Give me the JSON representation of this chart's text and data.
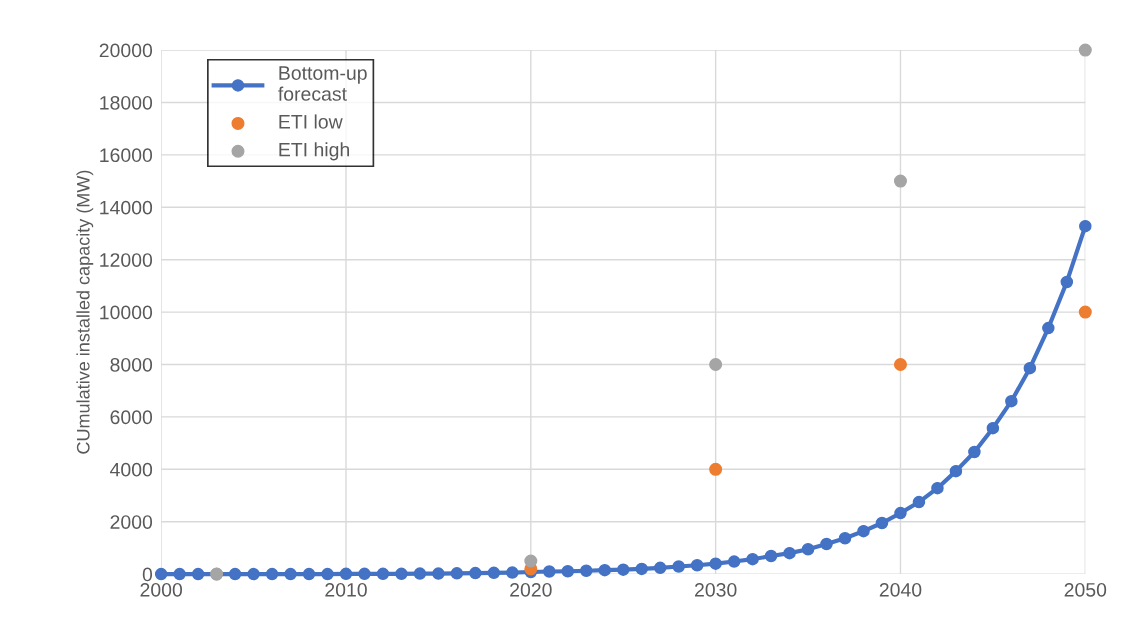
{
  "chart_data": {
    "type": "line",
    "ylabel": "CUmulative installed capacity (MW)",
    "xlim": [
      2000,
      2050
    ],
    "xticks": [
      2000,
      2010,
      2020,
      2030,
      2040,
      2050
    ],
    "ylim": [
      0,
      20000
    ],
    "yticks": [
      0,
      2000,
      4000,
      6000,
      8000,
      10000,
      12000,
      14000,
      16000,
      18000,
      20000
    ],
    "grid": true,
    "legend": "top left",
    "series": [
      {
        "name": "Bottom-up\nforecast",
        "color": "#4472c4",
        "marker": "circle",
        "x": [
          2000,
          2001,
          2002,
          2003,
          2004,
          2005,
          2006,
          2007,
          2008,
          2009,
          2010,
          2011,
          2012,
          2013,
          2014,
          2015,
          2016,
          2017,
          2018,
          2019,
          2020,
          2021,
          2022,
          2023,
          2024,
          2025,
          2026,
          2027,
          2028,
          2029,
          2030,
          2031,
          2032,
          2033,
          2034,
          2035,
          2036,
          2037,
          2038,
          2039,
          2040,
          2041,
          2042,
          2043,
          2044,
          2045,
          2046,
          2047,
          2048,
          2049,
          2050
        ],
        "values": [
          0,
          0,
          0,
          0,
          0,
          0,
          0,
          0,
          0,
          0,
          10,
          10,
          10,
          10,
          20,
          20,
          30,
          40,
          50,
          60,
          80,
          100,
          110,
          130,
          150,
          170,
          200,
          240,
          290,
          340,
          400,
          480,
          570,
          690,
          800,
          950,
          1150,
          1370,
          1640,
          1950,
          2330,
          2750,
          3280,
          3930,
          4660,
          5570,
          6600,
          7860,
          9390,
          11150,
          13280
        ]
      },
      {
        "name": "ETI low",
        "type": "scatter",
        "color": "#ed7d31",
        "marker": "circle",
        "x": [
          2020,
          2030,
          2040,
          2050
        ],
        "values": [
          200,
          4000,
          8000,
          10000
        ]
      },
      {
        "name": "ETI high",
        "type": "scatter",
        "color": "#a5a5a5",
        "marker": "circle",
        "x": [
          2003,
          2020,
          2030,
          2040,
          2050
        ],
        "values": [
          0,
          500,
          8000,
          15000,
          20000
        ]
      }
    ]
  }
}
